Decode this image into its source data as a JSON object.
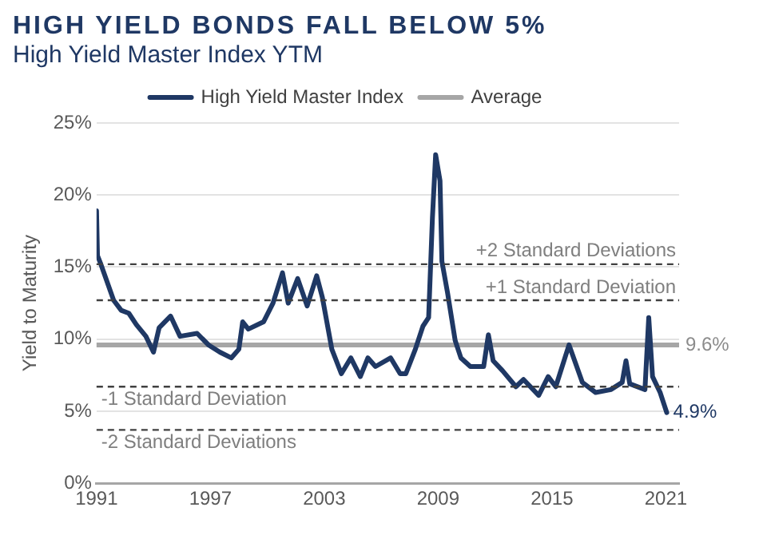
{
  "chart_data": {
    "type": "line",
    "title": "HIGH YIELD BONDS FALL BELOW 5%",
    "subtitle": "High Yield Master Index YTM",
    "ylabel": "Yield to Maturity",
    "xlim": [
      1991,
      2021.7
    ],
    "xticks": [
      1991,
      1997,
      2003,
      2009,
      2015,
      2021
    ],
    "ylim": [
      0,
      25
    ],
    "yticks": [
      {
        "value": 0,
        "label": "0%"
      },
      {
        "value": 5,
        "label": "5%"
      },
      {
        "value": 10,
        "label": "10%"
      },
      {
        "value": 15,
        "label": "15%"
      },
      {
        "value": 20,
        "label": "20%"
      },
      {
        "value": 25,
        "label": "25%"
      }
    ],
    "grid": "y",
    "legend": "top",
    "line_style": "solid",
    "marker": "none",
    "series": [
      {
        "name": "High Yield Master Index",
        "color": "#1f3864",
        "x": [
          1991.0,
          1991.05,
          1991.2,
          1991.9,
          1992.3,
          1992.7,
          1993.1,
          1993.6,
          1994.0,
          1994.3,
          1994.9,
          1995.4,
          1996.3,
          1996.9,
          1997.5,
          1998.1,
          1998.5,
          1998.7,
          1999.0,
          1999.8,
          2000.3,
          2000.8,
          2001.1,
          2001.6,
          2002.1,
          2002.6,
          2002.9,
          2003.4,
          2003.9,
          2004.4,
          2004.9,
          2005.3,
          2005.7,
          2006.5,
          2007.0,
          2007.3,
          2007.8,
          2008.2,
          2008.5,
          2008.7,
          2008.87,
          2009.1,
          2009.2,
          2009.5,
          2009.9,
          2010.2,
          2010.7,
          2011.4,
          2011.65,
          2011.9,
          2012.4,
          2013.1,
          2013.5,
          2014.3,
          2014.8,
          2015.2,
          2015.9,
          2016.6,
          2017.3,
          2018.1,
          2018.7,
          2018.9,
          2019.1,
          2019.9,
          2020.1,
          2020.3,
          2020.7,
          2021.05
        ],
        "values": [
          18.9,
          15.8,
          15.3,
          12.7,
          12.0,
          11.8,
          11.0,
          10.2,
          9.1,
          10.8,
          11.6,
          10.2,
          10.4,
          9.6,
          9.1,
          8.7,
          9.3,
          11.2,
          10.7,
          11.2,
          12.5,
          14.6,
          12.5,
          14.2,
          12.3,
          14.4,
          12.9,
          9.3,
          7.6,
          8.7,
          7.4,
          8.7,
          8.1,
          8.7,
          7.6,
          7.6,
          9.3,
          10.9,
          11.5,
          18.4,
          22.8,
          21.0,
          15.4,
          13.2,
          9.9,
          8.7,
          8.1,
          8.1,
          10.3,
          8.5,
          7.8,
          6.7,
          7.2,
          6.1,
          7.4,
          6.7,
          9.6,
          7.0,
          6.3,
          6.5,
          7.0,
          8.5,
          6.9,
          6.5,
          11.5,
          7.4,
          6.3,
          4.9
        ]
      },
      {
        "name": "Average",
        "color": "#a6a6a6",
        "x": [
          1991,
          2021.7
        ],
        "values": [
          9.6,
          9.6
        ]
      }
    ],
    "ref_lines": [
      {
        "axis": "y",
        "value": 15.2,
        "label": "+2 Standard Deviations",
        "color": "#404040",
        "line_style": "dashed"
      },
      {
        "axis": "y",
        "value": 12.7,
        "label": "+1 Standard Deviation",
        "color": "#404040",
        "line_style": "dashed"
      },
      {
        "axis": "y",
        "value": 6.7,
        "label": "-1 Standard Deviation",
        "color": "#404040",
        "line_style": "dashed"
      },
      {
        "axis": "y",
        "value": 3.7,
        "label": "-2 Standard Deviations",
        "color": "#404040",
        "line_style": "dashed"
      }
    ],
    "annotations": [
      {
        "text": "9.6%",
        "x": 2021.7,
        "y": 9.6
      },
      {
        "text": "4.9%",
        "x": 2021.05,
        "y": 4.9
      }
    ]
  }
}
